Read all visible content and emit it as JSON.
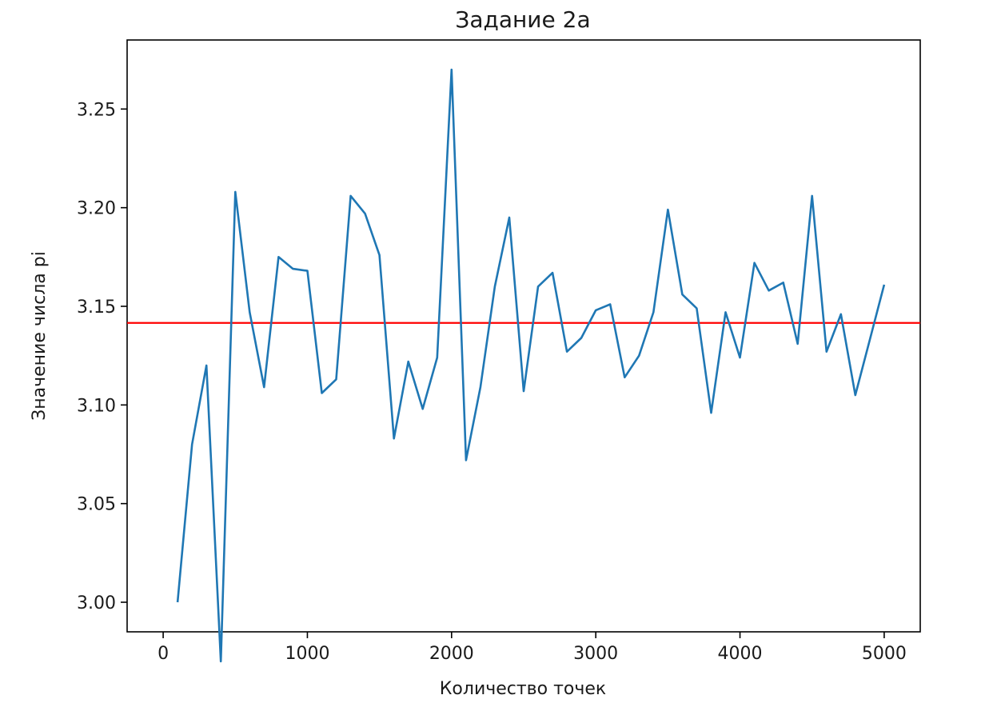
{
  "chart_data": {
    "type": "line",
    "title": "Задание 2а",
    "xlabel": "Количество точек",
    "ylabel": "Значение числа pi",
    "xlim": [
      -250,
      5250
    ],
    "ylim": [
      2.985,
      3.285
    ],
    "x_ticks": [
      0,
      1000,
      2000,
      3000,
      4000,
      5000
    ],
    "x_tick_labels": [
      "0",
      "1000",
      "2000",
      "3000",
      "4000",
      "5000"
    ],
    "y_ticks": [
      3.0,
      3.05,
      3.1,
      3.15,
      3.2,
      3.25
    ],
    "y_tick_labels": [
      "3.00",
      "3.05",
      "3.10",
      "3.15",
      "3.20",
      "3.25"
    ],
    "grid": false,
    "series": [
      {
        "color": "#1f77b4",
        "x": [
          100,
          200,
          300,
          400,
          500,
          600,
          700,
          800,
          900,
          1000,
          1100,
          1200,
          1300,
          1400,
          1500,
          1600,
          1700,
          1800,
          1900,
          2000,
          2100,
          2200,
          2300,
          2400,
          2500,
          2600,
          2700,
          2800,
          2900,
          3000,
          3100,
          3200,
          3300,
          3400,
          3500,
          3600,
          3700,
          3800,
          3900,
          4000,
          4100,
          4200,
          4300,
          4400,
          4500,
          4600,
          4700,
          4800,
          4900,
          5000
        ],
        "y": [
          3.0,
          3.08,
          3.12,
          2.97,
          3.208,
          3.147,
          3.109,
          3.175,
          3.169,
          3.168,
          3.106,
          3.113,
          3.206,
          3.197,
          3.176,
          3.083,
          3.122,
          3.098,
          3.124,
          3.27,
          3.072,
          3.109,
          3.16,
          3.195,
          3.107,
          3.16,
          3.167,
          3.127,
          3.134,
          3.148,
          3.151,
          3.114,
          3.125,
          3.147,
          3.199,
          3.156,
          3.149,
          3.096,
          3.147,
          3.124,
          3.172,
          3.158,
          3.162,
          3.131,
          3.206,
          3.127,
          3.146,
          3.105,
          3.133,
          3.161
        ]
      }
    ],
    "reference_line": {
      "y": 3.14159,
      "color": "#ff0000"
    }
  }
}
